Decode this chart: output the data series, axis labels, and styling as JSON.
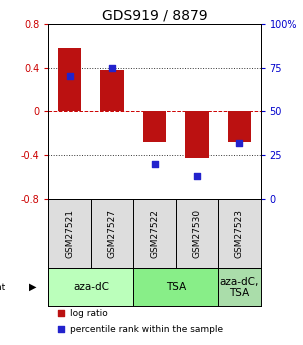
{
  "title": "GDS919 / 8879",
  "samples": [
    "GSM27521",
    "GSM27527",
    "GSM27522",
    "GSM27530",
    "GSM27523"
  ],
  "log_ratios": [
    0.58,
    0.38,
    -0.28,
    -0.43,
    -0.28
  ],
  "percentile_ranks": [
    70,
    75,
    20,
    13,
    32
  ],
  "ylim": [
    -0.8,
    0.8
  ],
  "yticks_left": [
    -0.8,
    -0.4,
    0.0,
    0.4,
    0.8
  ],
  "ytick_labels_left": [
    "-0.8",
    "-0.4",
    "0",
    "0.4",
    "0.8"
  ],
  "ytick_labels_right": [
    "0",
    "25",
    "50",
    "75",
    "100%"
  ],
  "agent_groups": [
    {
      "label": "aza-dC",
      "samples": [
        "GSM27521",
        "GSM27527"
      ],
      "color": "#bbffbb"
    },
    {
      "label": "TSA",
      "samples": [
        "GSM27522",
        "GSM27530"
      ],
      "color": "#88ee88"
    },
    {
      "label": "aza-dC,\nTSA",
      "samples": [
        "GSM27523"
      ],
      "color": "#aaddaa"
    }
  ],
  "bar_color": "#bb1111",
  "dot_color": "#2222cc",
  "bar_width": 0.55,
  "dot_size": 22,
  "zero_line_color": "#cc0000",
  "background_color": "#ffffff",
  "title_fontsize": 10,
  "tick_fontsize": 7,
  "sample_fontsize": 6.5,
  "agent_label_fontsize": 7.5
}
